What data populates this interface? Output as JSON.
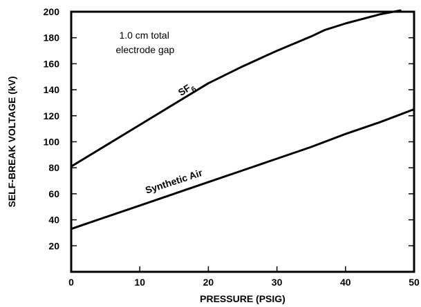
{
  "chart_data": {
    "type": "line",
    "xlabel": "PRESSURE (PSIG)",
    "ylabel": "SELF-BREAK VOLTAGE (kV)",
    "xlim": [
      0,
      50
    ],
    "ylim": [
      0,
      200
    ],
    "x_ticks": [
      0,
      10,
      20,
      30,
      40,
      50
    ],
    "y_ticks": [
      20,
      40,
      60,
      80,
      100,
      120,
      140,
      160,
      180,
      200
    ],
    "grid": false,
    "annotation": [
      "1.0 cm total",
      "electrode gap"
    ],
    "series": [
      {
        "name": "SF 6",
        "label_main": "SF",
        "label_sub": "6",
        "x": [
          0,
          5,
          10,
          15,
          20,
          25,
          30,
          35,
          37,
          40,
          45,
          48
        ],
        "y": [
          81,
          97,
          113,
          129,
          145,
          158,
          170,
          181,
          186,
          191,
          198,
          201
        ]
      },
      {
        "name": "Synthetic Air",
        "label_main": "Synthetic Air",
        "x": [
          0,
          5,
          10,
          15,
          20,
          25,
          30,
          35,
          40,
          45,
          50
        ],
        "y": [
          33,
          42,
          51,
          60,
          69,
          78,
          87,
          96,
          106,
          115,
          125
        ]
      }
    ]
  }
}
